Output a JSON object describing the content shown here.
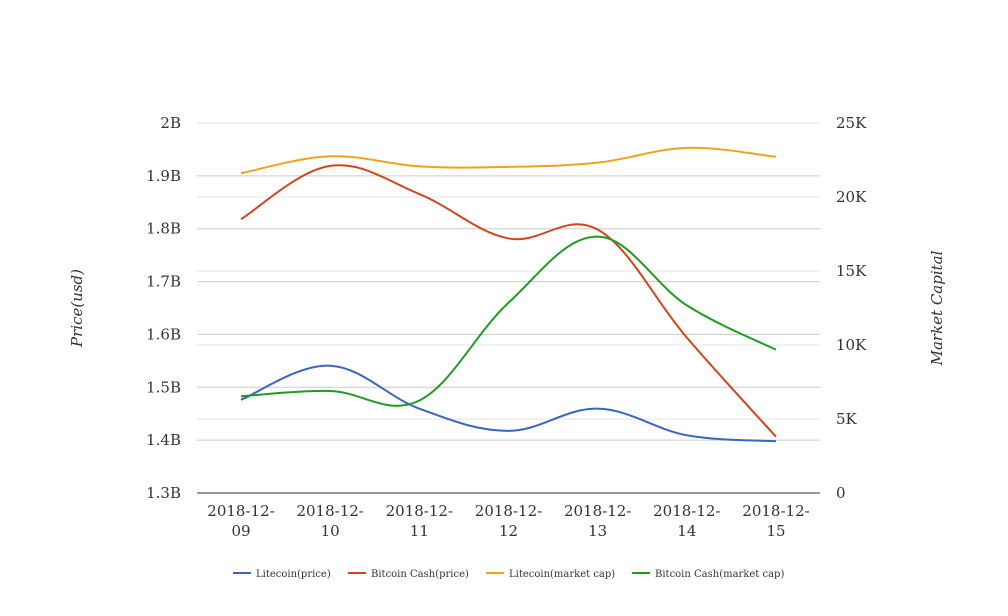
{
  "chart_data": {
    "type": "line",
    "categories": [
      "2018-12-09",
      "2018-12-10",
      "2018-12-11",
      "2018-12-12",
      "2018-12-13",
      "2018-12-14",
      "2018-12-15"
    ],
    "x_tick_lines": [
      [
        "2018-12-",
        "09"
      ],
      [
        "2018-12-",
        "10"
      ],
      [
        "2018-12-",
        "11"
      ],
      [
        "2018-12-",
        "12"
      ],
      [
        "2018-12-",
        "13"
      ],
      [
        "2018-12-",
        "14"
      ],
      [
        "2018-12-",
        "15"
      ]
    ],
    "left_axis": {
      "title": "Price(usd)",
      "ticks": [
        "2B",
        "1.9B",
        "1.8B",
        "1.7B",
        "1.6B",
        "1.5B",
        "1.4B",
        "1.3B"
      ],
      "ylim": [
        1300000000,
        2000000000
      ]
    },
    "right_axis": {
      "title": "Market Capital",
      "ticks": [
        "25K",
        "20K",
        "15K",
        "10K",
        "5K",
        "0"
      ],
      "ylim": [
        0,
        25000
      ]
    },
    "grid": true,
    "legend_position": "bottom",
    "series": [
      {
        "name": "Litecoin(price)",
        "axis": "right",
        "color": "#3a66bd",
        "values": [
          6300,
          8600,
          5700,
          4200,
          5700,
          3900,
          3500
        ]
      },
      {
        "name": "Bitcoin Cash(price)",
        "axis": "right",
        "color": "#d2441d",
        "values": [
          18500,
          22100,
          20200,
          17200,
          17800,
          10500,
          3800
        ]
      },
      {
        "name": "Litecoin(market cap)",
        "axis": "left",
        "color": "#f0a21b",
        "values": [
          1905000000,
          1937000000,
          1918000000,
          1917000000,
          1925000000,
          1953000000,
          1936000000
        ]
      },
      {
        "name": "Bitcoin Cash(market cap)",
        "axis": "left",
        "color": "#219a24",
        "values": [
          1483000000,
          1493000000,
          1475000000,
          1660000000,
          1785000000,
          1655000000,
          1571000000
        ]
      }
    ]
  }
}
